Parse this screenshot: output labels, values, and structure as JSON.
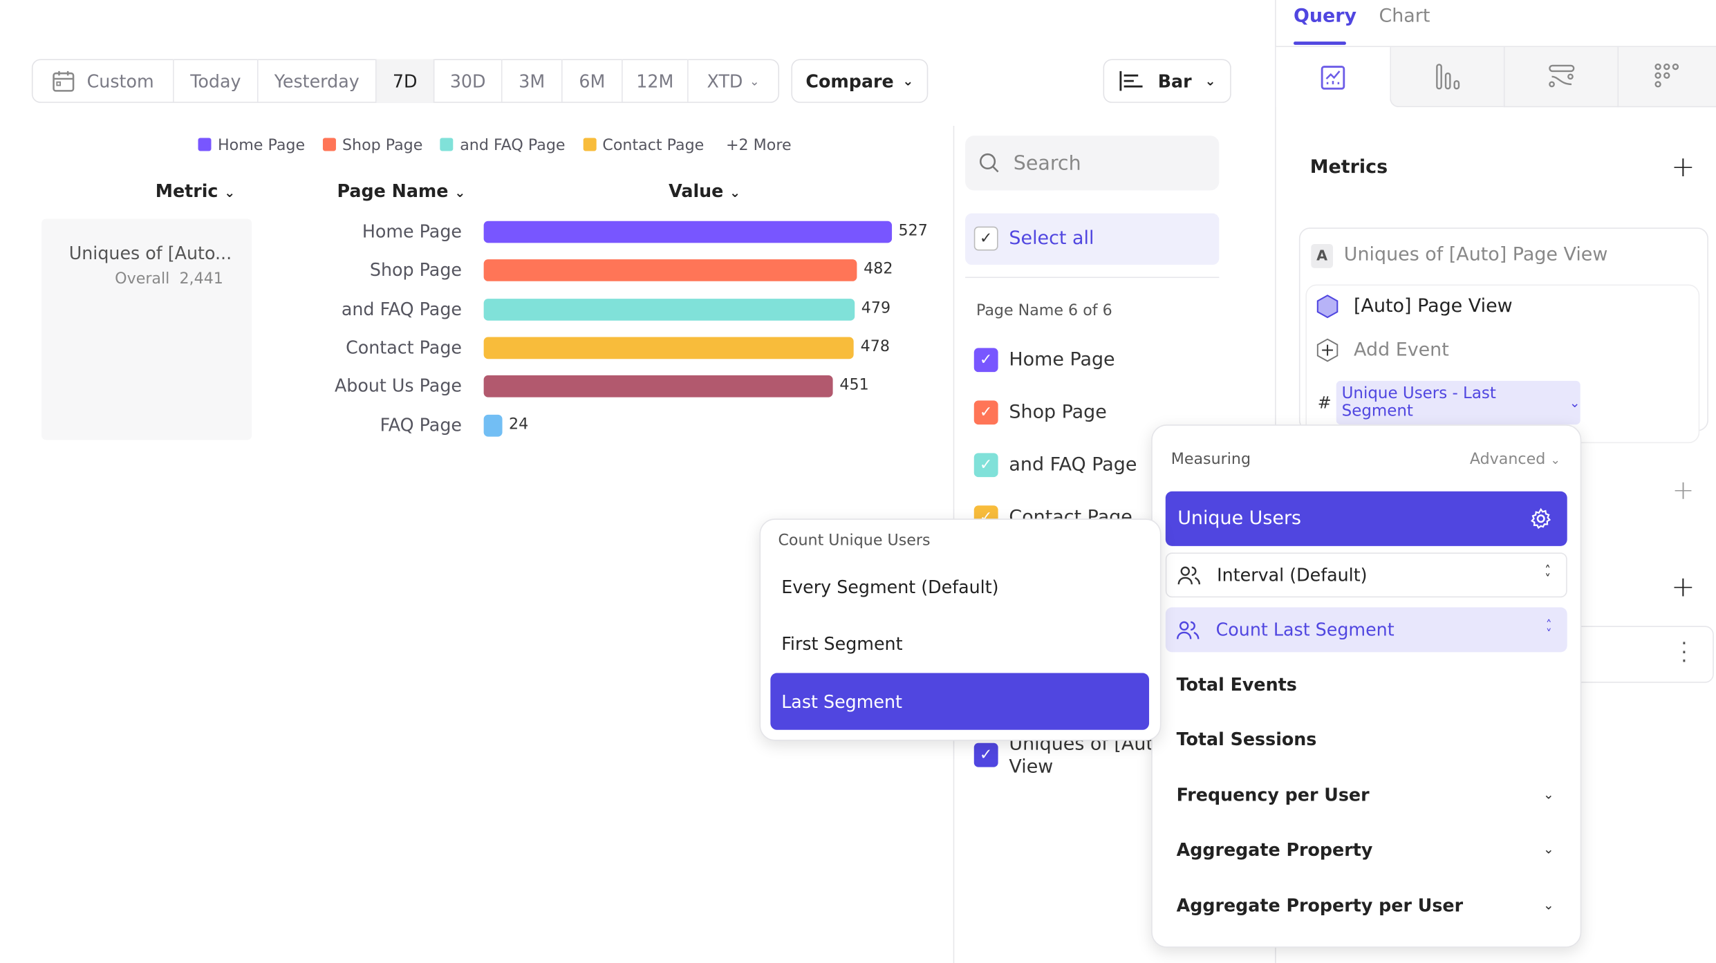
{
  "toolbar": {
    "date_ranges": [
      "Custom",
      "Today",
      "Yesterday",
      "7D",
      "30D",
      "3M",
      "6M",
      "12M",
      "XTD"
    ],
    "selected_range": "7D",
    "compare_label": "Compare",
    "chart_type_label": "Bar"
  },
  "legend": {
    "items": [
      {
        "label": "Home Page",
        "color": "#7856ff"
      },
      {
        "label": "Shop Page",
        "color": "#ff7557"
      },
      {
        "label": "and FAQ Page",
        "color": "#80e1d9"
      },
      {
        "label": "Contact Page",
        "color": "#f8bc3b"
      }
    ],
    "more": "+2 More"
  },
  "table": {
    "headers": {
      "metric": "Metric",
      "page_name": "Page Name",
      "value": "Value"
    },
    "metric_name": "Uniques of [Auto...",
    "overall_label": "Overall",
    "overall_value": "2,441"
  },
  "chart_data": {
    "type": "bar",
    "categories": [
      "Home Page",
      "Shop Page",
      "and FAQ Page",
      "Contact Page",
      "About Us Page",
      "FAQ Page"
    ],
    "values": [
      527,
      482,
      479,
      478,
      451,
      24
    ],
    "colors": [
      "#7856ff",
      "#ff7557",
      "#80e1d9",
      "#f8bc3b",
      "#b2596e",
      "#72bef4"
    ],
    "orientation": "horizontal"
  },
  "filter": {
    "search_placeholder": "Search",
    "select_all": "Select all",
    "count_label": "Page Name 6 of 6",
    "items": [
      {
        "label": "Home Page",
        "color": "#7856ff"
      },
      {
        "label": "Shop Page",
        "color": "#ff7557"
      },
      {
        "label": "and FAQ Page",
        "color": "#80e1d9"
      },
      {
        "label": "Contact Page",
        "color": "#f8bc3b"
      }
    ],
    "last_item_line1": "Uniques of [Auto",
    "last_item_line2": "View"
  },
  "panel": {
    "tabs": [
      "Query",
      "Chart"
    ],
    "active_tab": "Query",
    "metrics_title": "Metrics",
    "metric_badge": "A",
    "metric_title": "Uniques of [Auto] Page View",
    "event_name": "[Auto] Page View",
    "add_event": "Add Event",
    "measure_hash": "#",
    "measure_chip": "Unique Users - Last Segment"
  },
  "measuring_menu": {
    "title": "Measuring",
    "advanced": "Advanced",
    "selected": "Unique Users",
    "interval": "Interval (Default)",
    "count_mode": "Count Last Segment",
    "items": [
      "Total Events",
      "Total Sessions",
      "Frequency per User",
      "Aggregate Property",
      "Aggregate Property per User"
    ]
  },
  "segment_menu": {
    "title": "Count Unique Users",
    "options": [
      "Every Segment (Default)",
      "First Segment",
      "Last Segment"
    ],
    "selected": "Last Segment"
  },
  "accent_color": "#5046e0"
}
